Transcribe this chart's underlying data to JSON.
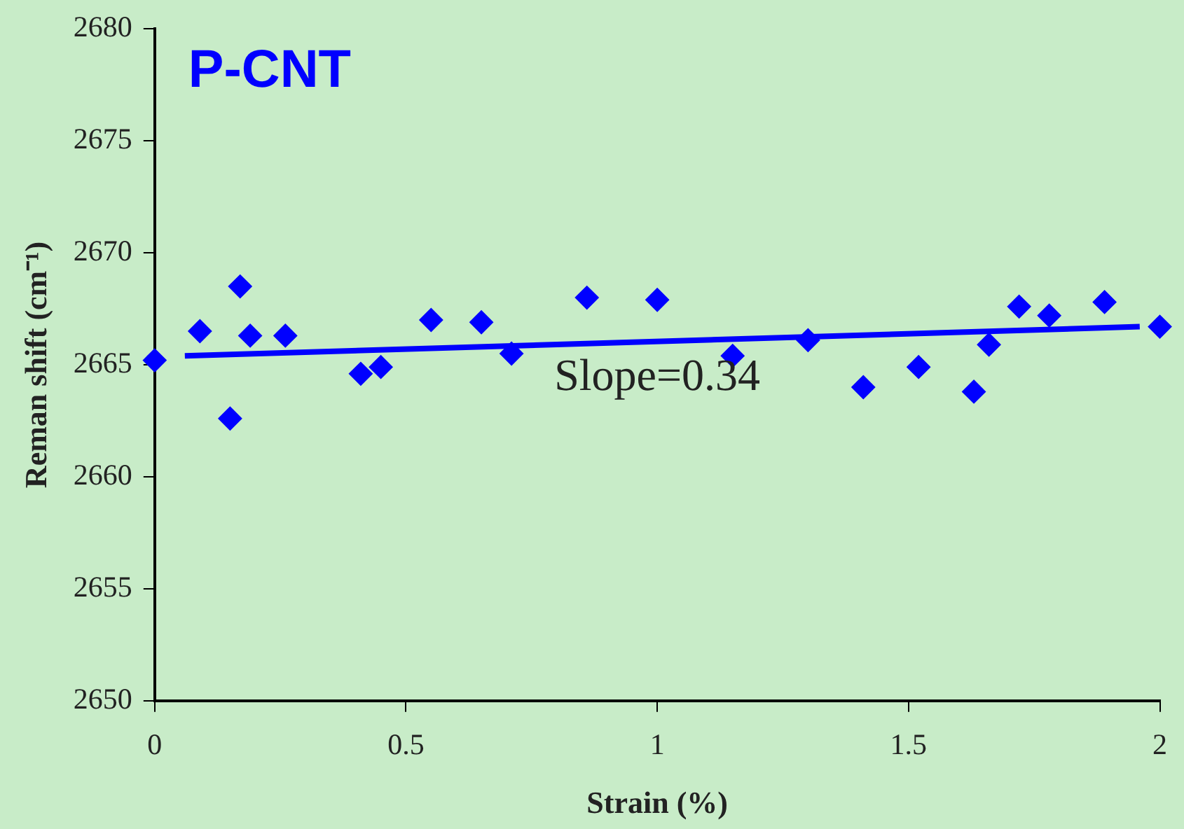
{
  "chart_data": {
    "type": "scatter",
    "title": "P-CNT",
    "xlabel": "Strain (%)",
    "ylabel": "Reman shift (cm⁻¹)",
    "x": [
      0,
      0.09,
      0.15,
      0.17,
      0.19,
      0.26,
      0.41,
      0.45,
      0.55,
      0.65,
      0.71,
      0.86,
      1.0,
      1.15,
      1.3,
      1.41,
      1.52,
      1.63,
      1.66,
      1.72,
      1.78,
      1.89,
      2.0
    ],
    "series": [
      {
        "color": "#0000ff",
        "values": [
          2665.2,
          2666.5,
          2662.6,
          2668.5,
          2666.3,
          2666.3,
          2664.6,
          2664.9,
          2667.0,
          2666.9,
          2665.5,
          2668.0,
          2667.9,
          2665.4,
          2666.1,
          2664.0,
          2664.9,
          2663.8,
          2665.9,
          2667.6,
          2667.2,
          2667.8,
          2666.7
        ]
      },
      {
        "type": "line",
        "color": "#0000ff",
        "marker": "none",
        "x": [
          0.06,
          1.96
        ],
        "values": [
          2665.4,
          2666.7
        ]
      }
    ],
    "annotations": [
      "Slope=0.34"
    ],
    "xlim": [
      0,
      2
    ],
    "xticks": [
      0,
      0.5,
      1,
      1.5,
      2
    ],
    "ylim": [
      2650,
      2680
    ],
    "yticks": [
      2650,
      2655,
      2660,
      2665,
      2670,
      2675,
      2680
    ],
    "grid": false,
    "legend": false,
    "marker": "diamond"
  }
}
